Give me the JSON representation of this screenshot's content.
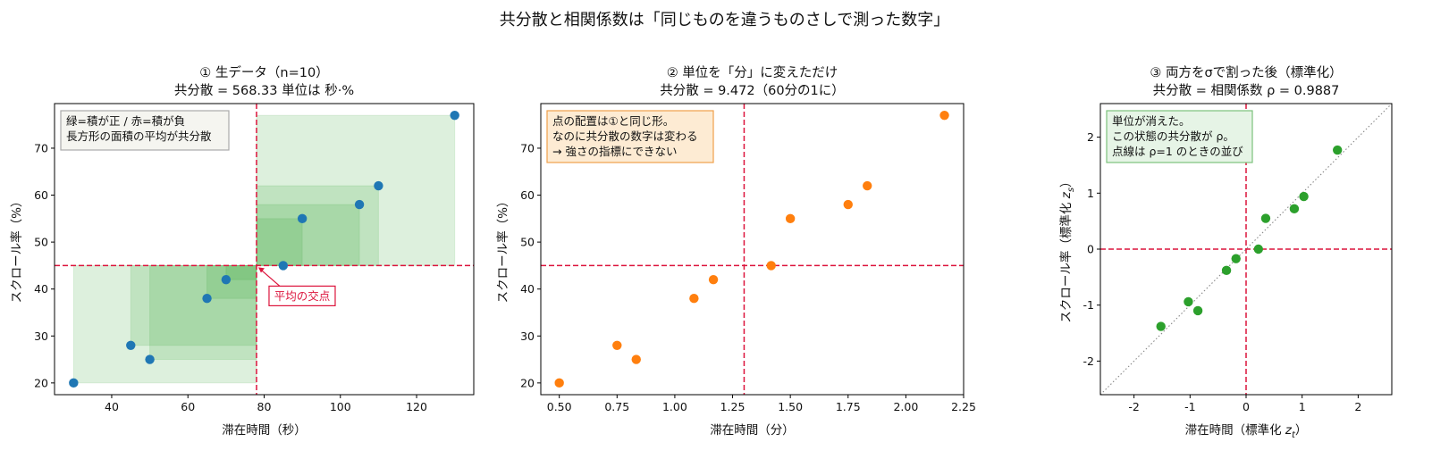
{
  "figure": {
    "title": "共分散と相関係数は「同じものを違うものさしで測った数字」"
  },
  "colors": {
    "blue": "#1f77b4",
    "orange": "#ff7f0e",
    "green": "#2ca02c",
    "mean_line": "#dc143c",
    "positive_rect": "#2ca02c",
    "diagonal": "#888888"
  },
  "chart_data": [
    {
      "type": "scatter",
      "title_line1": "① 生データ（n=10）",
      "title_line2": "共分散 = 568.33  単位は 秒·%",
      "xlabel": "滞在時間（秒）",
      "ylabel": "スクロール率（%）",
      "xlim": [
        25,
        135
      ],
      "ylim": [
        17.5,
        79.5
      ],
      "xticks": [
        40,
        60,
        80,
        100,
        120
      ],
      "yticks": [
        20,
        30,
        40,
        50,
        60,
        70
      ],
      "x": [
        30,
        45,
        50,
        65,
        70,
        85,
        90,
        105,
        110,
        130
      ],
      "y": [
        20,
        28,
        25,
        38,
        42,
        45,
        55,
        58,
        62,
        77
      ],
      "x_mean": 78,
      "y_mean": 45,
      "point_color": "#1f77b4",
      "grid": false,
      "note": [
        "緑=積が正 / 赤=積が負",
        "長方形の面積の平均が共分散"
      ],
      "annotation": "平均の交点"
    },
    {
      "type": "scatter",
      "title_line1": "② 単位を「分」に変えただけ",
      "title_line2": "共分散 = 9.472（60分の1に）",
      "xlabel": "滞在時間（分）",
      "ylabel": "スクロール率（%）",
      "xlim": [
        0.42,
        2.25
      ],
      "ylim": [
        17.5,
        79.5
      ],
      "xticks": [
        0.5,
        0.75,
        1.0,
        1.25,
        1.5,
        1.75,
        2.0,
        2.25
      ],
      "xtick_labels": [
        "0.50",
        "0.75",
        "1.00",
        "1.25",
        "1.50",
        "1.75",
        "2.00",
        "2.25"
      ],
      "yticks": [
        20,
        30,
        40,
        50,
        60,
        70
      ],
      "x": [
        0.5,
        0.75,
        0.833,
        1.083,
        1.167,
        1.417,
        1.5,
        1.75,
        1.833,
        2.167
      ],
      "y": [
        20,
        28,
        25,
        38,
        42,
        45,
        55,
        58,
        62,
        77
      ],
      "x_mean": 1.3,
      "y_mean": 45,
      "point_color": "#ff7f0e",
      "grid": false,
      "note": [
        "点の配置は①と同じ形。",
        "なのに共分散の数字は変わる",
        "→ 強さの指標にできない"
      ]
    },
    {
      "type": "scatter",
      "title_line1": "③ 両方をσで割った後（標準化）",
      "title_line2": "共分散 = 相関係数 ρ = 0.9887",
      "xlabel": "滞在時間（標準化 z_t）",
      "ylabel": "スクロール率（標準化 z_s）",
      "xlim": [
        -2.6,
        2.6
      ],
      "ylim": [
        -2.6,
        2.6
      ],
      "xticks": [
        -2,
        -1,
        0,
        1,
        2
      ],
      "yticks": [
        -2,
        -1,
        0,
        1,
        2
      ],
      "x": [
        -1.52,
        -1.03,
        -0.86,
        -0.35,
        -0.18,
        0.22,
        0.35,
        0.86,
        1.03,
        1.63
      ],
      "y": [
        -1.38,
        -0.94,
        -1.1,
        -0.38,
        -0.17,
        0.0,
        0.55,
        0.72,
        0.94,
        1.77
      ],
      "x_mean": 0,
      "y_mean": 0,
      "point_color": "#2ca02c",
      "grid": false,
      "diagonal": true,
      "note": [
        "単位が消えた。",
        "この状態の共分散が ρ。",
        "点線は ρ=1 のときの並び"
      ]
    }
  ]
}
